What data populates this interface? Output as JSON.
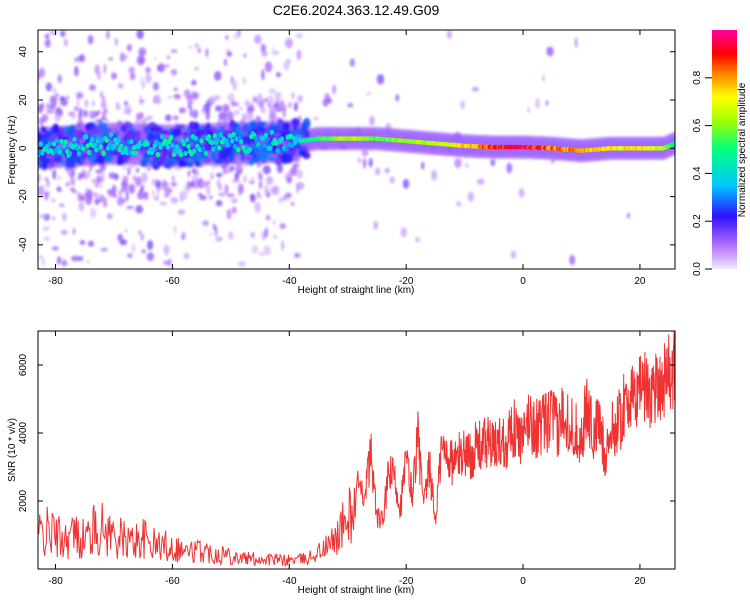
{
  "title": "C2E6.2024.363.12.49.G09",
  "colors": {
    "snr_line": "#ee3333",
    "axis": "#000000"
  },
  "chart_data": [
    {
      "type": "heatmap",
      "xlabel": "Height of straight line (km)",
      "ylabel": "Frequency (Hz)",
      "xlim": [
        -83,
        26
      ],
      "ylim": [
        -50,
        49
      ],
      "x_ticks": [
        -80,
        -60,
        -40,
        -20,
        0,
        20
      ],
      "y_ticks": [
        -40,
        -20,
        0,
        20,
        40
      ],
      "colorbar": {
        "label": "Normalized spectral amplitude",
        "range": [
          0,
          1
        ],
        "ticks": [
          "0.0",
          "0.2",
          "0.4",
          "0.6",
          "0.8"
        ],
        "colormap": "rainbow: white-lavender (0) → violet → blue → cyan → green → yellow → orange → red → magenta (1)"
      },
      "ridge": [
        {
          "x": -83,
          "freq": 0,
          "amp": 0.45
        },
        {
          "x": -70,
          "freq": 2,
          "amp": 0.45
        },
        {
          "x": -60,
          "freq": 1,
          "amp": 0.45
        },
        {
          "x": -50,
          "freq": 2,
          "amp": 0.45
        },
        {
          "x": -38,
          "freq": 3,
          "amp": 0.45
        },
        {
          "x": -35,
          "freq": 4,
          "amp": 0.55
        },
        {
          "x": -30,
          "freq": 4,
          "amp": 0.7
        },
        {
          "x": -25,
          "freq": 4,
          "amp": 0.6
        },
        {
          "x": -20,
          "freq": 3,
          "amp": 0.65
        },
        {
          "x": -15,
          "freq": 2,
          "amp": 0.7
        },
        {
          "x": -10,
          "freq": 1,
          "amp": 0.8
        },
        {
          "x": -5,
          "freq": 0.5,
          "amp": 0.95
        },
        {
          "x": 0,
          "freq": 0.5,
          "amp": 1.0
        },
        {
          "x": 5,
          "freq": 0,
          "amp": 0.9
        },
        {
          "x": 10,
          "freq": -1,
          "amp": 0.85
        },
        {
          "x": 15,
          "freq": 0,
          "amp": 0.8
        },
        {
          "x": 20,
          "freq": 0,
          "amp": 0.8
        },
        {
          "x": 24,
          "freq": 0,
          "amp": 0.7
        },
        {
          "x": 26,
          "freq": 2,
          "amp": 0.5
        }
      ]
    },
    {
      "type": "line",
      "xlabel": "Height of straight line (km)",
      "ylabel": "SNR (10 * v/v)",
      "xlim": [
        -83,
        26
      ],
      "ylim": [
        0,
        7000
      ],
      "x_ticks": [
        -80,
        -60,
        -40,
        -20,
        0,
        20
      ],
      "y_ticks": [
        2000,
        4000,
        6000
      ],
      "series": [
        {
          "x": [
            -83,
            -81,
            -79,
            -77,
            -75,
            -73,
            -71,
            -69,
            -67,
            -65,
            -63,
            -61,
            -59,
            -57,
            -55,
            -53,
            -51,
            -49,
            -47,
            -45,
            -43,
            -41,
            -39,
            -37,
            -35,
            -33,
            -31,
            -29,
            -27,
            -26,
            -25,
            -24,
            -23,
            -22,
            -21,
            -20,
            -19,
            -18,
            -17,
            -16,
            -15,
            -14,
            -13,
            -12,
            -11,
            -10,
            -9,
            -8,
            -7,
            -6,
            -5,
            -4,
            -3,
            -2,
            -1,
            0,
            1,
            2,
            3,
            4,
            5,
            6,
            7,
            8,
            9,
            10,
            11,
            12,
            13,
            14,
            15,
            16,
            17,
            18,
            19,
            20,
            21,
            22,
            23,
            24,
            25,
            26
          ],
          "y": [
            1000,
            1100,
            900,
            1000,
            900,
            1200,
            1100,
            900,
            800,
            900,
            700,
            700,
            600,
            500,
            550,
            450,
            450,
            350,
            300,
            300,
            280,
            250,
            280,
            300,
            500,
            700,
            1200,
            1800,
            2400,
            3400,
            1500,
            1400,
            2800,
            2700,
            1800,
            3200,
            2200,
            3900,
            1800,
            3000,
            1400,
            3500,
            3400,
            3100,
            3300,
            3500,
            3300,
            3600,
            3600,
            3800,
            3500,
            3800,
            3700,
            4200,
            4000,
            3700,
            4500,
            4100,
            4200,
            4300,
            4500,
            4000,
            4800,
            4200,
            4100,
            3800,
            4900,
            3900,
            4300,
            3400,
            4000,
            4200,
            4600,
            5200,
            4800,
            5600,
            5300,
            5200,
            5500,
            5600,
            5800,
            5800
          ]
        }
      ]
    }
  ]
}
